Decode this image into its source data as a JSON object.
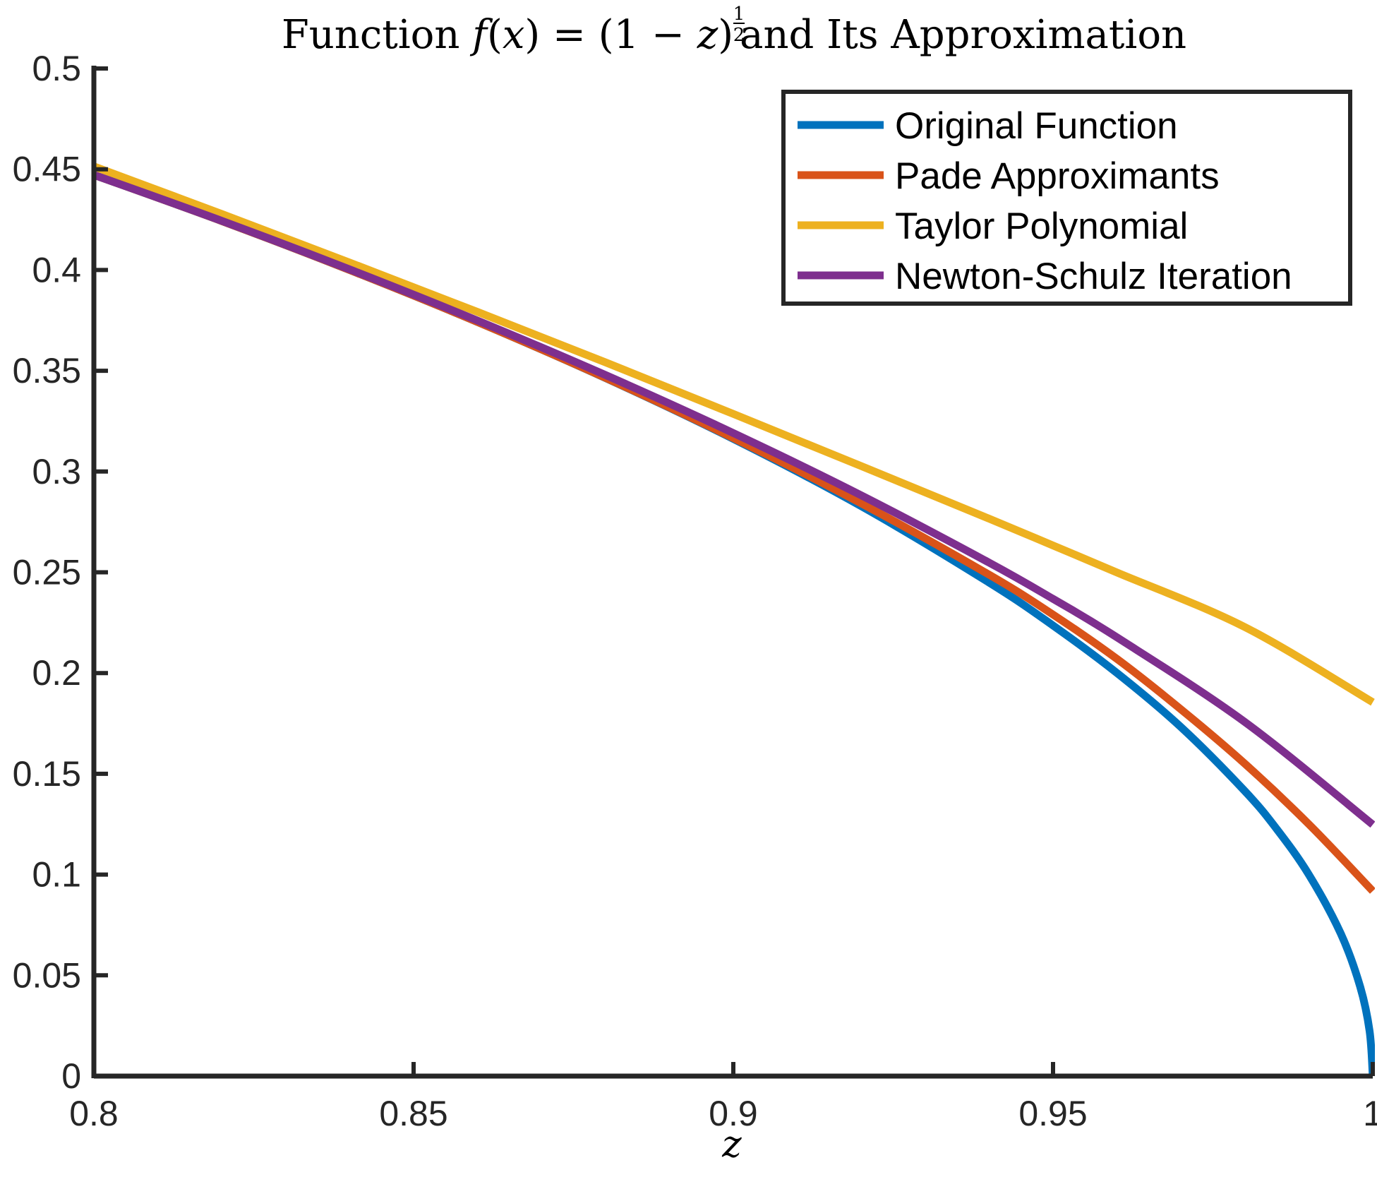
{
  "chart_data": {
    "type": "line",
    "title": {
      "prefix": "Function ",
      "f": "f",
      "arg": "(",
      "x": "x",
      "mid": ") = (1 − ",
      "z": "z",
      "close": ")",
      "exp_num": "1",
      "exp_den": "2",
      "suffix": " and Its Approximation"
    },
    "xlabel": "z",
    "ylabel": "",
    "xlim": [
      0.8,
      1.0
    ],
    "ylim": [
      0,
      0.5
    ],
    "xticks": [
      "0.8",
      "0.85",
      "0.9",
      "0.95",
      "1"
    ],
    "yticks": [
      "0",
      "0.05",
      "0.1",
      "0.15",
      "0.2",
      "0.25",
      "0.3",
      "0.35",
      "0.4",
      "0.45",
      "0.5"
    ],
    "grid": false,
    "legend_position": "top-right",
    "series": [
      {
        "name": "Original Function",
        "color": "#0072BD",
        "x": [
          0.8,
          0.82,
          0.84,
          0.86,
          0.88,
          0.9,
          0.92,
          0.94,
          0.95,
          0.96,
          0.97,
          0.98,
          0.985,
          0.99,
          0.995,
          0.998,
          0.9995,
          1.0
        ],
        "y": [
          0.4472,
          0.4243,
          0.4,
          0.3742,
          0.3464,
          0.3162,
          0.2828,
          0.2449,
          0.2236,
          0.2,
          0.1732,
          0.1414,
          0.1225,
          0.1,
          0.0707,
          0.0447,
          0.0224,
          0.0
        ]
      },
      {
        "name": "Pade Approximants",
        "color": "#D95319",
        "x": [
          0.8,
          0.82,
          0.84,
          0.86,
          0.88,
          0.9,
          0.92,
          0.94,
          0.95,
          0.96,
          0.97,
          0.98,
          0.99,
          1.0
        ],
        "y": [
          0.4472,
          0.4243,
          0.4,
          0.3742,
          0.3465,
          0.3166,
          0.2842,
          0.2488,
          0.229,
          0.207,
          0.182,
          0.155,
          0.125,
          0.0918
        ]
      },
      {
        "name": "Taylor Polynomial",
        "color": "#EDB120",
        "x": [
          0.8,
          0.82,
          0.84,
          0.86,
          0.88,
          0.9,
          0.92,
          0.94,
          0.95,
          0.96,
          0.98,
          1.0
        ],
        "y": [
          0.4514,
          0.4278,
          0.4037,
          0.3792,
          0.3542,
          0.3286,
          0.3027,
          0.2766,
          0.2633,
          0.2499,
          0.2228,
          0.1855
        ]
      },
      {
        "name": "Newton-Schulz Iteration",
        "color": "#7E2F8E",
        "x": [
          0.8,
          0.82,
          0.84,
          0.86,
          0.88,
          0.9,
          0.92,
          0.94,
          0.95,
          0.96,
          0.98,
          1.0
        ],
        "y": [
          0.4472,
          0.4244,
          0.4003,
          0.3749,
          0.3479,
          0.3191,
          0.2882,
          0.2548,
          0.2368,
          0.2177,
          0.1757,
          0.1248
        ]
      }
    ]
  }
}
